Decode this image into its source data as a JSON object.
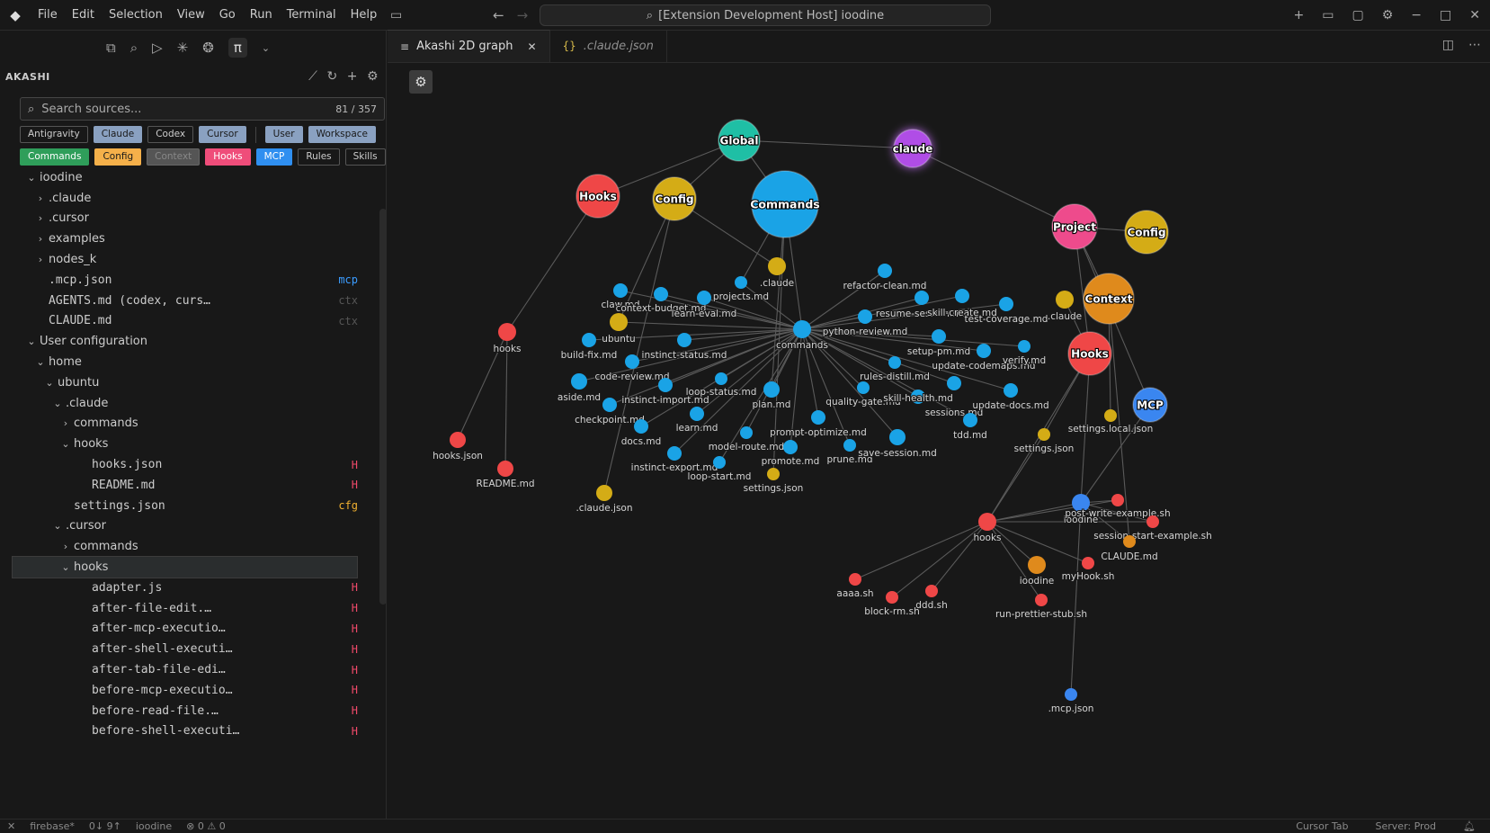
{
  "menu": [
    "File",
    "Edit",
    "Selection",
    "View",
    "Go",
    "Run",
    "Terminal",
    "Help"
  ],
  "command_center": "[Extension Development Host] ioodine",
  "sidebar": {
    "title": "AKASHI",
    "search": {
      "placeholder": "Search sources...",
      "count": "81 / 357"
    },
    "chips_row1": [
      "Antigravity",
      "Claude",
      "Codex",
      "Cursor",
      "User",
      "Workspace"
    ],
    "chips_row2": [
      "Commands",
      "Config",
      "Context",
      "Hooks",
      "MCP",
      "Rules",
      "Skills"
    ],
    "chip_styles": {
      "Antigravity": {
        "bg": "transparent",
        "fg": "#cccccc",
        "border": "#555555"
      },
      "Claude": {
        "bg": "#8aa1c1",
        "fg": "#1a1a1a",
        "border": "#8aa1c1"
      },
      "Codex": {
        "bg": "transparent",
        "fg": "#cccccc",
        "border": "#555555"
      },
      "Cursor": {
        "bg": "#8aa1c1",
        "fg": "#1a1a1a",
        "border": "#8aa1c1"
      },
      "User": {
        "bg": "#8aa1c1",
        "fg": "#1a1a1a",
        "border": "#8aa1c1"
      },
      "Workspace": {
        "bg": "#8aa1c1",
        "fg": "#1a1a1a",
        "border": "#8aa1c1"
      },
      "Commands": {
        "bg": "#2f9e5a",
        "fg": "#ffffff",
        "border": "#2f9e5a"
      },
      "Config": {
        "bg": "#f5b04a",
        "fg": "#1a1a1a",
        "border": "#f5b04a"
      },
      "Context": {
        "bg": "#555555",
        "fg": "#888888",
        "border": "#666666"
      },
      "Hooks": {
        "bg": "#ef4d7a",
        "fg": "#ffffff",
        "border": "#ef4d7a"
      },
      "MCP": {
        "bg": "#2f8ff0",
        "fg": "#ffffff",
        "border": "#2f8ff0"
      },
      "Rules": {
        "bg": "transparent",
        "fg": "#cccccc",
        "border": "#555555"
      },
      "Skills": {
        "bg": "transparent",
        "fg": "#cccccc",
        "border": "#555555"
      }
    },
    "tree": [
      {
        "label": "ioodine",
        "depth": 0,
        "chev": "open",
        "mono": false
      },
      {
        "label": ".claude",
        "depth": 1,
        "chev": "closed",
        "mono": false
      },
      {
        "label": ".cursor",
        "depth": 1,
        "chev": "closed",
        "mono": false
      },
      {
        "label": "examples",
        "depth": 1,
        "chev": "closed",
        "mono": false
      },
      {
        "label": "nodes_k",
        "depth": 1,
        "chev": "closed",
        "mono": false
      },
      {
        "label": ".mcp.json",
        "depth": 1,
        "chev": "none",
        "mono": true,
        "badge": "mcp",
        "badge_color": "#3b9cff"
      },
      {
        "label": "AGENTS.md (codex, curs…",
        "depth": 1,
        "chev": "none",
        "mono": true,
        "badge": "ctx",
        "badge_color": "#555555"
      },
      {
        "label": "CLAUDE.md",
        "depth": 1,
        "chev": "none",
        "mono": true,
        "badge": "ctx",
        "badge_color": "#555555"
      },
      {
        "label": "User configuration",
        "depth": 0,
        "chev": "open",
        "mono": false
      },
      {
        "label": "home",
        "depth": 1,
        "chev": "open",
        "mono": false
      },
      {
        "label": "ubuntu",
        "depth": 2,
        "chev": "open",
        "mono": false
      },
      {
        "label": ".claude",
        "depth": 3,
        "chev": "open",
        "mono": false
      },
      {
        "label": "commands",
        "depth": 4,
        "chev": "closed",
        "mono": false
      },
      {
        "label": "hooks",
        "depth": 4,
        "chev": "open",
        "mono": false
      },
      {
        "label": "hooks.json",
        "depth": 5,
        "chev": "none",
        "mono": true,
        "badge": "H",
        "badge_color": "#f04a6a"
      },
      {
        "label": "README.md",
        "depth": 5,
        "chev": "none",
        "mono": true,
        "badge": "H",
        "badge_color": "#f04a6a"
      },
      {
        "label": "settings.json",
        "depth": 4,
        "chev": "none",
        "mono": true,
        "badge": "cfg",
        "badge_color": "#f0b030"
      },
      {
        "label": ".cursor",
        "depth": 3,
        "chev": "open",
        "mono": false
      },
      {
        "label": "commands",
        "depth": 4,
        "chev": "closed",
        "mono": false
      },
      {
        "label": "hooks",
        "depth": 4,
        "chev": "open",
        "mono": false,
        "selected": true
      },
      {
        "label": "adapter.js",
        "depth": 5,
        "chev": "none",
        "mono": true,
        "badge": "H",
        "badge_color": "#f04a6a"
      },
      {
        "label": "after-file-edit.…",
        "depth": 5,
        "chev": "none",
        "mono": true,
        "badge": "H",
        "badge_color": "#f04a6a"
      },
      {
        "label": "after-mcp-executio…",
        "depth": 5,
        "chev": "none",
        "mono": true,
        "badge": "H",
        "badge_color": "#f04a6a"
      },
      {
        "label": "after-shell-executi…",
        "depth": 5,
        "chev": "none",
        "mono": true,
        "badge": "H",
        "badge_color": "#f04a6a"
      },
      {
        "label": "after-tab-file-edi…",
        "depth": 5,
        "chev": "none",
        "mono": true,
        "badge": "H",
        "badge_color": "#f04a6a"
      },
      {
        "label": "before-mcp-executio…",
        "depth": 5,
        "chev": "none",
        "mono": true,
        "badge": "H",
        "badge_color": "#f04a6a"
      },
      {
        "label": "before-read-file.…",
        "depth": 5,
        "chev": "none",
        "mono": true,
        "badge": "H",
        "badge_color": "#f04a6a"
      },
      {
        "label": "before-shell-executi…",
        "depth": 5,
        "chev": "none",
        "mono": true,
        "badge": "H",
        "badge_color": "#f04a6a"
      }
    ]
  },
  "tabs": [
    {
      "label": "Akashi 2D graph",
      "icon": "≡",
      "active": true
    },
    {
      "label": ".claude.json",
      "icon": "{}",
      "active": false
    }
  ],
  "graph": {
    "colors": {
      "commands": "#1aa3e6",
      "config": "#d4ac16",
      "hooks": "#ef4747",
      "global": "#1fbfa5",
      "claude": "#b04ee6",
      "project": "#ee4b8c",
      "context": "#df8a1c",
      "mcp": "#3a86f0"
    },
    "nodes": [
      {
        "id": "global",
        "label": "Global",
        "type": "global",
        "hub": true
      },
      {
        "id": "claude",
        "label": "claude",
        "type": "claude",
        "hub": true
      },
      {
        "id": "hooks_hub",
        "label": "Hooks",
        "type": "hooks",
        "hub": true
      },
      {
        "id": "config_hub",
        "label": "Config",
        "type": "config",
        "hub": true
      },
      {
        "id": "commands_hub",
        "label": "Commands",
        "type": "commands",
        "hub": true
      },
      {
        "id": "project",
        "label": "Project",
        "type": "project",
        "hub": true
      },
      {
        "id": "config_hub2",
        "label": "Config",
        "type": "config",
        "hub": true
      },
      {
        "id": "context_hub",
        "label": "Context",
        "type": "context",
        "hub": true
      },
      {
        "id": "hooks_hub2",
        "label": "Hooks",
        "type": "hooks",
        "hub": true
      },
      {
        "id": "mcp_hub",
        "label": "MCP",
        "type": "mcp",
        "hub": true
      },
      {
        "id": "hooks_dir",
        "label": "hooks",
        "type": "hooks"
      },
      {
        "id": "hooks_json",
        "label": "hooks.json",
        "type": "hooks"
      },
      {
        "id": "readme",
        "label": "README.md",
        "type": "hooks"
      },
      {
        "id": "cmds",
        "label": "commands",
        "type": "commands"
      },
      {
        "id": "dotclaude",
        "label": ".claude",
        "type": "config"
      },
      {
        "id": "claw",
        "label": "claw.md",
        "type": "commands"
      },
      {
        "id": "ctxbudget",
        "label": "context-budget.md",
        "type": "commands"
      },
      {
        "id": "learneval",
        "label": "learn-eval.md",
        "type": "commands"
      },
      {
        "id": "projects",
        "label": "projects.md",
        "type": "commands"
      },
      {
        "id": "ubuntu",
        "label": "ubuntu",
        "type": "config"
      },
      {
        "id": "buildfix",
        "label": "build-fix.md",
        "type": "commands"
      },
      {
        "id": "instinctstatus",
        "label": "instinct-status.md",
        "type": "commands"
      },
      {
        "id": "codereview",
        "label": "code-review.md",
        "type": "commands"
      },
      {
        "id": "aside",
        "label": "aside.md",
        "type": "commands"
      },
      {
        "id": "instinctimport",
        "label": "instinct-import.md",
        "type": "commands"
      },
      {
        "id": "loopstatus",
        "label": "loop-status.md",
        "type": "commands"
      },
      {
        "id": "checkpoint",
        "label": "checkpoint.md",
        "type": "commands"
      },
      {
        "id": "plan",
        "label": "plan.md",
        "type": "commands"
      },
      {
        "id": "learn",
        "label": "learn.md",
        "type": "commands"
      },
      {
        "id": "docs",
        "label": "docs.md",
        "type": "commands"
      },
      {
        "id": "modelroute",
        "label": "model-route.md",
        "type": "commands"
      },
      {
        "id": "promptopt",
        "label": "prompt-optimize.md",
        "type": "commands"
      },
      {
        "id": "promote",
        "label": "promote.md",
        "type": "commands"
      },
      {
        "id": "instinctexport",
        "label": "instinct-export.md",
        "type": "commands"
      },
      {
        "id": "loopstart",
        "label": "loop-start.md",
        "type": "commands"
      },
      {
        "id": "prune",
        "label": "prune.md",
        "type": "commands"
      },
      {
        "id": "savesession",
        "label": "save-session.md",
        "type": "commands"
      },
      {
        "id": "settings1",
        "label": "settings.json",
        "type": "config"
      },
      {
        "id": "claudejson",
        "label": ".claude.json",
        "type": "config"
      },
      {
        "id": "refactor",
        "label": "refactor-clean.md",
        "type": "commands"
      },
      {
        "id": "pyreview",
        "label": "python-review.md",
        "type": "commands"
      },
      {
        "id": "resume",
        "label": "resume-session.md",
        "type": "commands"
      },
      {
        "id": "skillcreate",
        "label": "skill-create.md",
        "type": "commands"
      },
      {
        "id": "testcov",
        "label": "test-coverage.md",
        "type": "commands"
      },
      {
        "id": "setuppm",
        "label": "setup-pm.md",
        "type": "commands"
      },
      {
        "id": "updcodemaps",
        "label": "update-codemaps.md",
        "type": "commands"
      },
      {
        "id": "verify",
        "label": "verify.md",
        "type": "commands"
      },
      {
        "id": "rulesdistill",
        "label": "rules-distill.md",
        "type": "commands"
      },
      {
        "id": "qualitygate",
        "label": "quality-gate.md",
        "type": "commands"
      },
      {
        "id": "skillhealth",
        "label": "skill-health.md",
        "type": "commands"
      },
      {
        "id": "sessions",
        "label": "sessions.md",
        "type": "commands"
      },
      {
        "id": "upddocs",
        "label": "update-docs.md",
        "type": "commands"
      },
      {
        "id": "tdd",
        "label": "tdd.md",
        "type": "commands"
      },
      {
        "id": "dotclaude2",
        "label": ".claude",
        "type": "config"
      },
      {
        "id": "settingslocal",
        "label": "settings.local.json",
        "type": "config"
      },
      {
        "id": "settings2",
        "label": "settings.json",
        "type": "config"
      },
      {
        "id": "hooks2",
        "label": "hooks",
        "type": "hooks"
      },
      {
        "id": "ioodine_mcp",
        "label": "ioodine",
        "type": "mcp"
      },
      {
        "id": "postwrite",
        "label": "post-write-example.sh",
        "type": "hooks"
      },
      {
        "id": "sessstart",
        "label": "session-start-example.sh",
        "type": "hooks"
      },
      {
        "id": "claudemd",
        "label": "CLAUDE.md",
        "type": "context"
      },
      {
        "id": "ioodine_ctx",
        "label": "ioodine",
        "type": "context"
      },
      {
        "id": "myhook",
        "label": "myHook.sh",
        "type": "hooks"
      },
      {
        "id": "aaaa",
        "label": "aaaa.sh",
        "type": "hooks"
      },
      {
        "id": "blockrm",
        "label": "block-rm.sh",
        "type": "hooks"
      },
      {
        "id": "ddd",
        "label": "ddd.sh",
        "type": "hooks"
      },
      {
        "id": "runprettier",
        "label": "run-prettier-stub.sh",
        "type": "hooks"
      },
      {
        "id": "mcpjson",
        "label": ".mcp.json",
        "type": "mcp"
      }
    ]
  },
  "statusbar": {
    "left": [
      "firebase*",
      "0↓ 9↑",
      "ioodine",
      "⊗ 0 ⚠ 0"
    ],
    "right": [
      "Cursor Tab",
      "Server: Prod"
    ]
  }
}
